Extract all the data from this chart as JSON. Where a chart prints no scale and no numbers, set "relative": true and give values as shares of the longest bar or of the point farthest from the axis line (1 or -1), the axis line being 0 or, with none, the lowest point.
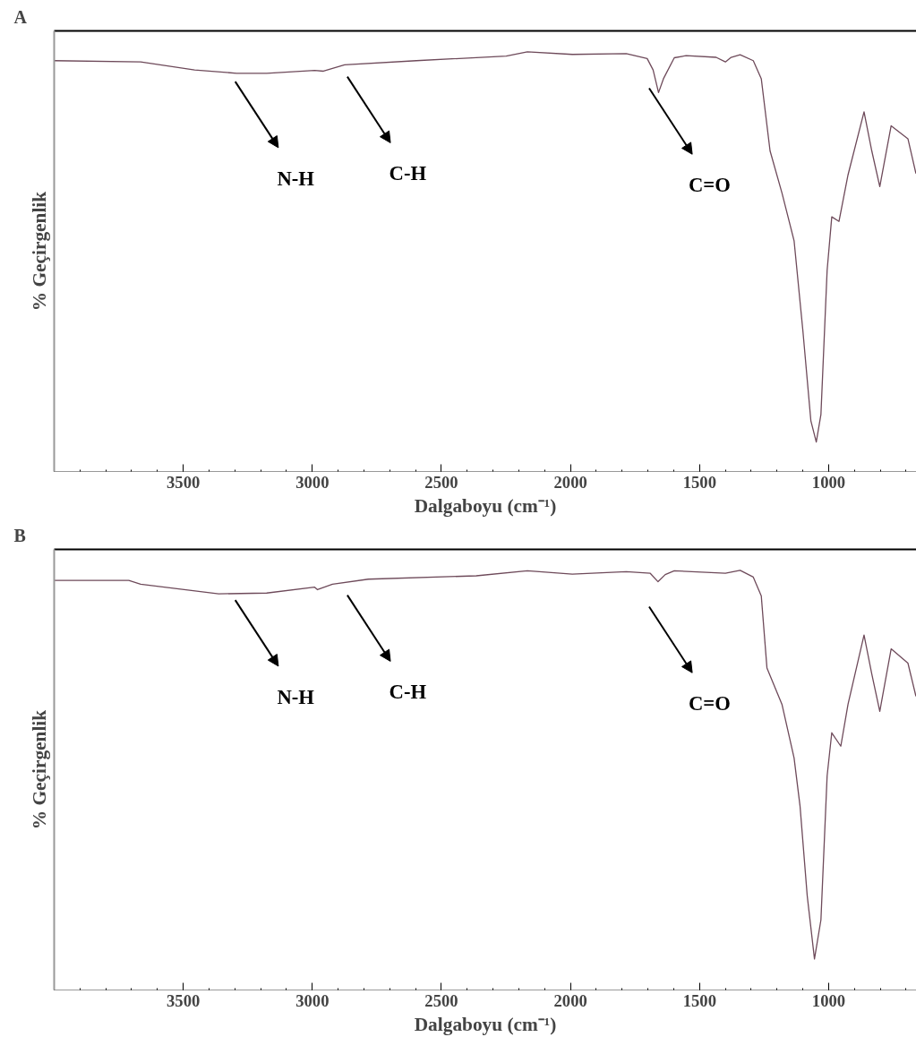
{
  "chart_data": [
    {
      "type": "line",
      "title": "A",
      "xlabel": "Dalgaboyu (cm⁻¹)",
      "ylabel": "% Geçirgenlik",
      "relative": true,
      "xlim": [
        4000,
        660
      ],
      "xticks": [
        3500,
        3000,
        2500,
        2000,
        1500,
        1000
      ],
      "grid": false,
      "tick_labels": "x",
      "x": [
        4000,
        3665,
        3456,
        3293,
        3177,
        2991,
        2957,
        2875,
        2597,
        2249,
        2167,
        1993,
        1784,
        1703,
        1680,
        1659,
        1640,
        1598,
        1552,
        1436,
        1400,
        1378,
        1343,
        1292,
        1261,
        1227,
        1181,
        1134,
        1100,
        1069,
        1048,
        1030,
        1006,
        988,
        960,
        925,
        863,
        833,
        802,
        758,
        693,
        662
      ],
      "series": [
        {
          "color": "#6e4a5a",
          "values": [
            0.979,
            0.976,
            0.957,
            0.949,
            0.949,
            0.956,
            0.954,
            0.969,
            0.979,
            0.99,
            1.0,
            0.994,
            0.996,
            0.984,
            0.957,
            0.903,
            0.936,
            0.986,
            0.991,
            0.987,
            0.976,
            0.987,
            0.993,
            0.979,
            0.936,
            0.764,
            0.664,
            0.55,
            0.336,
            0.121,
            0.07,
            0.136,
            0.479,
            0.607,
            0.596,
            0.707,
            0.857,
            0.764,
            0.679,
            0.824,
            0.793,
            0.71
          ]
        }
      ],
      "annotations": [
        "N-H",
        "C-H",
        "C=O"
      ]
    },
    {
      "type": "line",
      "title": "B",
      "xlabel": "Dalgaboyu (cm⁻¹)",
      "ylabel": "% Geçirgenlik",
      "relative": true,
      "xlim": [
        4000,
        660
      ],
      "xticks": [
        3500,
        3000,
        2500,
        2000,
        1500,
        1000
      ],
      "grid": false,
      "tick_labels": "x",
      "x": [
        4000,
        3711,
        3665,
        3363,
        3177,
        2991,
        2980,
        2922,
        2783,
        2365,
        2167,
        1993,
        1784,
        1691,
        1661,
        1633,
        1598,
        1400,
        1343,
        1292,
        1261,
        1239,
        1181,
        1134,
        1111,
        1083,
        1055,
        1030,
        1006,
        988,
        953,
        925,
        863,
        833,
        802,
        758,
        693,
        662
      ],
      "series": [
        {
          "color": "#6e4a5a",
          "values": [
            0.976,
            0.976,
            0.967,
            0.944,
            0.946,
            0.96,
            0.954,
            0.967,
            0.979,
            0.987,
            0.999,
            0.991,
            0.997,
            0.993,
            0.973,
            0.99,
            0.999,
            0.993,
            1.0,
            0.984,
            0.939,
            0.767,
            0.681,
            0.553,
            0.439,
            0.224,
            0.074,
            0.167,
            0.51,
            0.613,
            0.581,
            0.681,
            0.846,
            0.753,
            0.664,
            0.813,
            0.779,
            0.7
          ]
        }
      ],
      "annotations": [
        "N-H",
        "C-H",
        "C=O"
      ]
    }
  ]
}
